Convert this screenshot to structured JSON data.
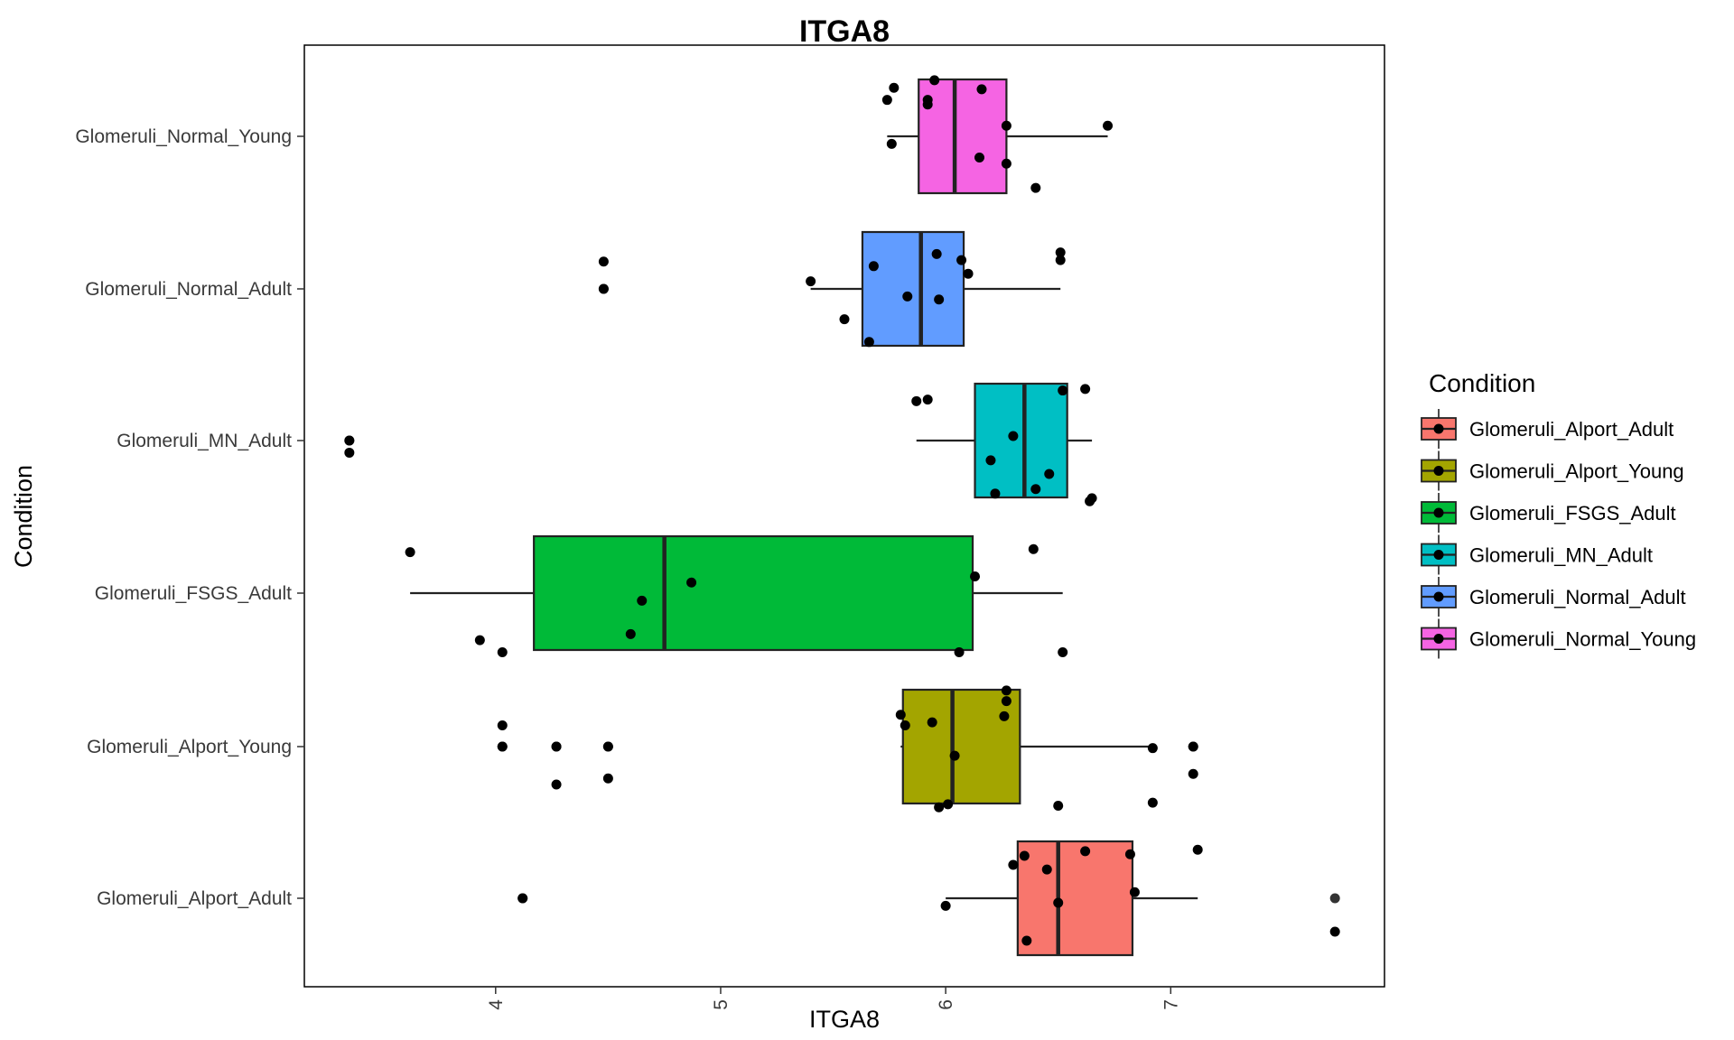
{
  "chart_data": {
    "type": "boxplot",
    "title": "ITGA8",
    "xlabel": "ITGA8",
    "ylabel": "Condition",
    "xlim": [
      3.15,
      7.95
    ],
    "xticks": [
      4,
      5,
      6,
      7
    ],
    "grid": false,
    "legend": {
      "title": "Condition",
      "placement": "right"
    },
    "categories": [
      "Glomeruli_Alport_Adult",
      "Glomeruli_Alport_Young",
      "Glomeruli_FSGS_Adult",
      "Glomeruli_MN_Adult",
      "Glomeruli_Normal_Adult",
      "Glomeruli_Normal_Young"
    ],
    "series": [
      {
        "name": "Glomeruli_Alport_Adult",
        "color": "#F8766D",
        "box": {
          "whisker_low": 6.0,
          "q1": 6.32,
          "median": 6.5,
          "q3": 6.83,
          "whisker_high": 7.12
        },
        "outliers": [
          4.12,
          7.73
        ],
        "points": [
          {
            "x": 4.12,
            "dy": 0.0
          },
          {
            "x": 6.0,
            "dy": 0.05
          },
          {
            "x": 6.3,
            "dy": -0.22
          },
          {
            "x": 6.45,
            "dy": -0.19
          },
          {
            "x": 6.5,
            "dy": 0.03
          },
          {
            "x": 6.62,
            "dy": -0.31
          },
          {
            "x": 6.82,
            "dy": -0.29
          },
          {
            "x": 6.84,
            "dy": -0.04
          },
          {
            "x": 7.12,
            "dy": -0.32
          },
          {
            "x": 6.35,
            "dy": -0.28
          },
          {
            "x": 6.36,
            "dy": 0.28
          },
          {
            "x": 7.73,
            "dy": 0.22
          }
        ]
      },
      {
        "name": "Glomeruli_Alport_Young",
        "color": "#A3A500",
        "box": {
          "whisker_low": 5.8,
          "q1": 5.81,
          "median": 6.03,
          "q3": 6.33,
          "whisker_high": 6.92
        },
        "outliers": [
          4.03,
          4.27,
          4.5,
          7.1
        ],
        "points": [
          {
            "x": 4.03,
            "dy": -0.14
          },
          {
            "x": 4.03,
            "dy": 0.0
          },
          {
            "x": 4.27,
            "dy": 0.25
          },
          {
            "x": 4.27,
            "dy": 0.0
          },
          {
            "x": 4.5,
            "dy": 0.21
          },
          {
            "x": 4.5,
            "dy": 0.0
          },
          {
            "x": 5.8,
            "dy": -0.21
          },
          {
            "x": 5.82,
            "dy": -0.14
          },
          {
            "x": 5.94,
            "dy": -0.16
          },
          {
            "x": 5.97,
            "dy": 0.4
          },
          {
            "x": 6.01,
            "dy": 0.38
          },
          {
            "x": 6.04,
            "dy": 0.06
          },
          {
            "x": 6.26,
            "dy": -0.2
          },
          {
            "x": 6.27,
            "dy": -0.3
          },
          {
            "x": 6.27,
            "dy": -0.37
          },
          {
            "x": 6.5,
            "dy": 0.39
          },
          {
            "x": 6.92,
            "dy": 0.37
          },
          {
            "x": 6.92,
            "dy": 0.01
          },
          {
            "x": 7.1,
            "dy": 0.18
          },
          {
            "x": 7.1,
            "dy": 0.0
          }
        ]
      },
      {
        "name": "Glomeruli_FSGS_Adult",
        "color": "#00BA38",
        "box": {
          "whisker_low": 3.62,
          "q1": 4.17,
          "median": 4.75,
          "q3": 6.12,
          "whisker_high": 6.52
        },
        "outliers": [],
        "points": [
          {
            "x": 3.62,
            "dy": -0.27
          },
          {
            "x": 3.93,
            "dy": 0.31
          },
          {
            "x": 4.03,
            "dy": 0.39
          },
          {
            "x": 4.6,
            "dy": 0.27
          },
          {
            "x": 4.65,
            "dy": 0.05
          },
          {
            "x": 4.87,
            "dy": -0.07
          },
          {
            "x": 6.06,
            "dy": 0.39
          },
          {
            "x": 6.13,
            "dy": -0.11
          },
          {
            "x": 6.39,
            "dy": -0.29
          },
          {
            "x": 6.52,
            "dy": 0.39
          }
        ]
      },
      {
        "name": "Glomeruli_MN_Adult",
        "color": "#00BFC4",
        "box": {
          "whisker_low": 5.87,
          "q1": 6.13,
          "median": 6.35,
          "q3": 6.54,
          "whisker_high": 6.65
        },
        "outliers": [
          3.35
        ],
        "points": [
          {
            "x": 3.35,
            "dy": 0.08
          },
          {
            "x": 3.35,
            "dy": 0.0
          },
          {
            "x": 5.87,
            "dy": -0.26
          },
          {
            "x": 5.92,
            "dy": -0.27
          },
          {
            "x": 6.2,
            "dy": 0.13
          },
          {
            "x": 6.22,
            "dy": 0.35
          },
          {
            "x": 6.3,
            "dy": -0.03
          },
          {
            "x": 6.4,
            "dy": 0.32
          },
          {
            "x": 6.46,
            "dy": 0.22
          },
          {
            "x": 6.52,
            "dy": -0.33
          },
          {
            "x": 6.62,
            "dy": -0.34
          },
          {
            "x": 6.64,
            "dy": 0.4
          },
          {
            "x": 6.65,
            "dy": 0.38
          }
        ]
      },
      {
        "name": "Glomeruli_Normal_Adult",
        "color": "#619CFF",
        "box": {
          "whisker_low": 5.4,
          "q1": 5.63,
          "median": 5.89,
          "q3": 6.08,
          "whisker_high": 6.51
        },
        "outliers": [
          4.48
        ],
        "points": [
          {
            "x": 4.48,
            "dy": 0.0
          },
          {
            "x": 4.48,
            "dy": -0.18
          },
          {
            "x": 5.4,
            "dy": -0.05
          },
          {
            "x": 5.55,
            "dy": 0.2
          },
          {
            "x": 5.66,
            "dy": 0.35
          },
          {
            "x": 5.68,
            "dy": -0.15
          },
          {
            "x": 5.83,
            "dy": 0.05
          },
          {
            "x": 5.96,
            "dy": -0.23
          },
          {
            "x": 5.97,
            "dy": 0.07
          },
          {
            "x": 6.07,
            "dy": -0.19
          },
          {
            "x": 6.1,
            "dy": -0.1
          },
          {
            "x": 6.51,
            "dy": -0.19
          },
          {
            "x": 6.51,
            "dy": -0.24
          }
        ]
      },
      {
        "name": "Glomeruli_Normal_Young",
        "color": "#F564E3",
        "box": {
          "whisker_low": 5.74,
          "q1": 5.88,
          "median": 6.04,
          "q3": 6.27,
          "whisker_high": 6.72
        },
        "outliers": [],
        "points": [
          {
            "x": 5.74,
            "dy": -0.24
          },
          {
            "x": 5.76,
            "dy": 0.05
          },
          {
            "x": 5.77,
            "dy": -0.32
          },
          {
            "x": 5.92,
            "dy": -0.21
          },
          {
            "x": 5.92,
            "dy": -0.24
          },
          {
            "x": 5.95,
            "dy": -0.37
          },
          {
            "x": 6.15,
            "dy": 0.14
          },
          {
            "x": 6.16,
            "dy": -0.31
          },
          {
            "x": 6.27,
            "dy": 0.18
          },
          {
            "x": 6.27,
            "dy": -0.07
          },
          {
            "x": 6.4,
            "dy": 0.34
          },
          {
            "x": 6.72,
            "dy": -0.07
          }
        ]
      }
    ]
  }
}
